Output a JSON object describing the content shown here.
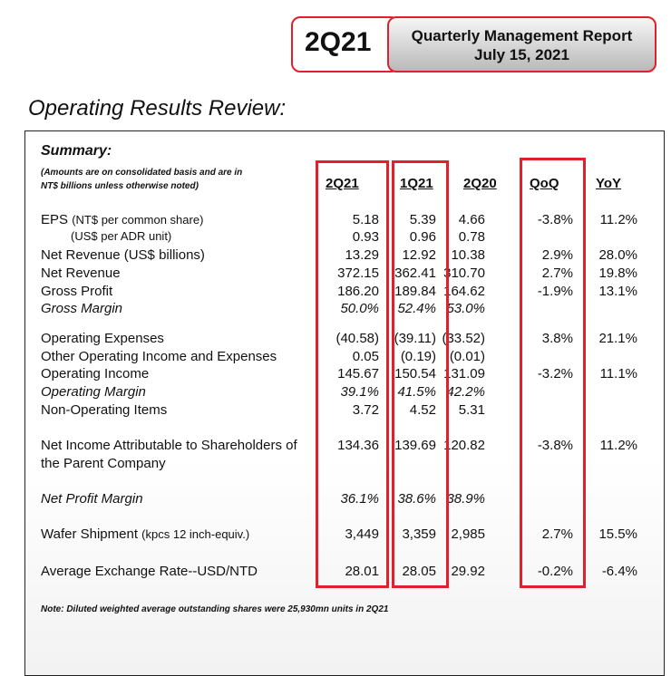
{
  "header": {
    "quarter": "2Q21",
    "report_title": "Quarterly Management Report",
    "date": "July 15, 2021"
  },
  "section_title": "Operating Results Review:",
  "summary": {
    "title": "Summary:",
    "note_line1": "(Amounts are on consolidated basis and are in",
    "note_line2": "NT$ billions unless otherwise noted)"
  },
  "columns": [
    "2Q21",
    "1Q21",
    "2Q20",
    "QoQ",
    "YoY"
  ],
  "rows": [
    {
      "label": "EPS",
      "sub": "(NT$ per common share)",
      "v": [
        "5.18",
        "5.39",
        "4.66",
        "-3.8%",
        "11.2%"
      ]
    },
    {
      "label": "(US$ per ADR unit)",
      "v": [
        "0.93",
        "0.96",
        "0.78",
        "",
        ""
      ]
    },
    {
      "label": "Net Revenue (US$ billions)",
      "v": [
        "13.29",
        "12.92",
        "10.38",
        "2.9%",
        "28.0%"
      ]
    },
    {
      "label": "Net Revenue",
      "v": [
        "372.15",
        "362.41",
        "310.70",
        "2.7%",
        "19.8%"
      ]
    },
    {
      "label": "Gross Profit",
      "v": [
        "186.20",
        "189.84",
        "164.62",
        "-1.9%",
        "13.1%"
      ]
    },
    {
      "label": "Gross Margin",
      "v": [
        "50.0%",
        "52.4%",
        "53.0%",
        "",
        ""
      ]
    },
    {
      "label": "Operating Expenses",
      "v": [
        "(40.58)",
        "(39.11)",
        "(33.52)",
        "3.8%",
        "21.1%"
      ]
    },
    {
      "label": "Other Operating Income and Expenses",
      "v": [
        "0.05",
        "(0.19)",
        "(0.01)",
        "",
        ""
      ]
    },
    {
      "label": "Operating Income",
      "v": [
        "145.67",
        "150.54",
        "131.09",
        "-3.2%",
        "11.1%"
      ]
    },
    {
      "label": "Operating Margin",
      "v": [
        "39.1%",
        "41.5%",
        "42.2%",
        "",
        ""
      ]
    },
    {
      "label": "Non-Operating Items",
      "v": [
        "3.72",
        "4.52",
        "5.31",
        "",
        ""
      ]
    },
    {
      "label": "Net Income Attributable to Shareholders of",
      "label2": "the Parent Company",
      "v": [
        "134.36",
        "139.69",
        "120.82",
        "-3.8%",
        "11.2%"
      ]
    },
    {
      "label": "Net Profit Margin",
      "v": [
        "36.1%",
        "38.6%",
        "38.9%",
        "",
        ""
      ]
    },
    {
      "label": "Wafer Shipment",
      "sub": "(kpcs 12 inch-equiv.)",
      "v": [
        "3,449",
        "3,359",
        "2,985",
        "2.7%",
        "15.5%"
      ]
    },
    {
      "label": "Average Exchange Rate--USD/NTD",
      "v": [
        "28.01",
        "28.05",
        "29.92",
        "-0.2%",
        "-6.4%"
      ]
    }
  ],
  "footnote": "Note: Diluted weighted average outstanding shares were 25,930mn units in 2Q21",
  "highlight_color": "#e0202a"
}
